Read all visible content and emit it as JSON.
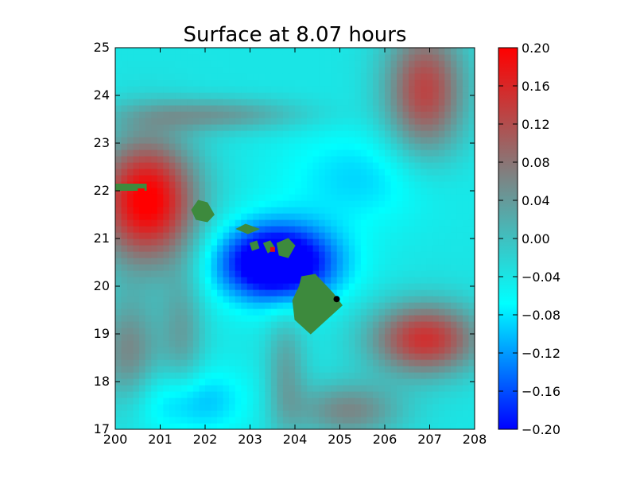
{
  "chart_data": {
    "type": "heatmap",
    "title": "Surface at 8.07 hours",
    "xlabel": "",
    "ylabel": "",
    "xlim": [
      200,
      208
    ],
    "ylim": [
      17,
      25
    ],
    "x_ticks": [
      "200",
      "201",
      "202",
      "203",
      "204",
      "205",
      "206",
      "207",
      "208"
    ],
    "y_ticks": [
      "17",
      "18",
      "19",
      "20",
      "21",
      "22",
      "23",
      "24",
      "25"
    ],
    "grid": false,
    "colorbar": {
      "vmin": -0.2,
      "vmax": 0.2,
      "ticks": [
        "0.20",
        "0.16",
        "0.12",
        "0.08",
        "0.04",
        "0.00",
        "−0.04",
        "−0.08",
        "−0.12",
        "−0.16",
        "−0.20"
      ],
      "colors": [
        "#0000ff",
        "#00ffff",
        "#808080",
        "#ff0000"
      ]
    },
    "land_color": "#3d8a3d",
    "marker": {
      "x": 204.93,
      "y": 19.73,
      "color": "#000000"
    },
    "field_description": "Sea surface elevation; positive (red) anomaly NW near (200.7, 21.9) and SE near (206.9, 18.9), gray-teal positive band toward NE corner (206.8, 24); strong negative (blue) trough around the islands centered near (203.5, 20.5); cyan ridges radiating from the island chain.",
    "islands": [
      {
        "name_hidden": true,
        "x": 202.0,
        "y": 21.6
      },
      {
        "name_hidden": true,
        "x": 202.9,
        "y": 21.15
      },
      {
        "name_hidden": true,
        "x": 203.1,
        "y": 20.85
      },
      {
        "name_hidden": true,
        "x": 203.4,
        "y": 20.8
      },
      {
        "name_hidden": true,
        "x": 203.7,
        "y": 20.75
      },
      {
        "name_hidden": true,
        "x": 204.4,
        "y": 19.6
      }
    ],
    "red_patch": {
      "x": [
        200.5,
        200.65
      ],
      "y": [
        21.9,
        22.05
      ]
    }
  }
}
